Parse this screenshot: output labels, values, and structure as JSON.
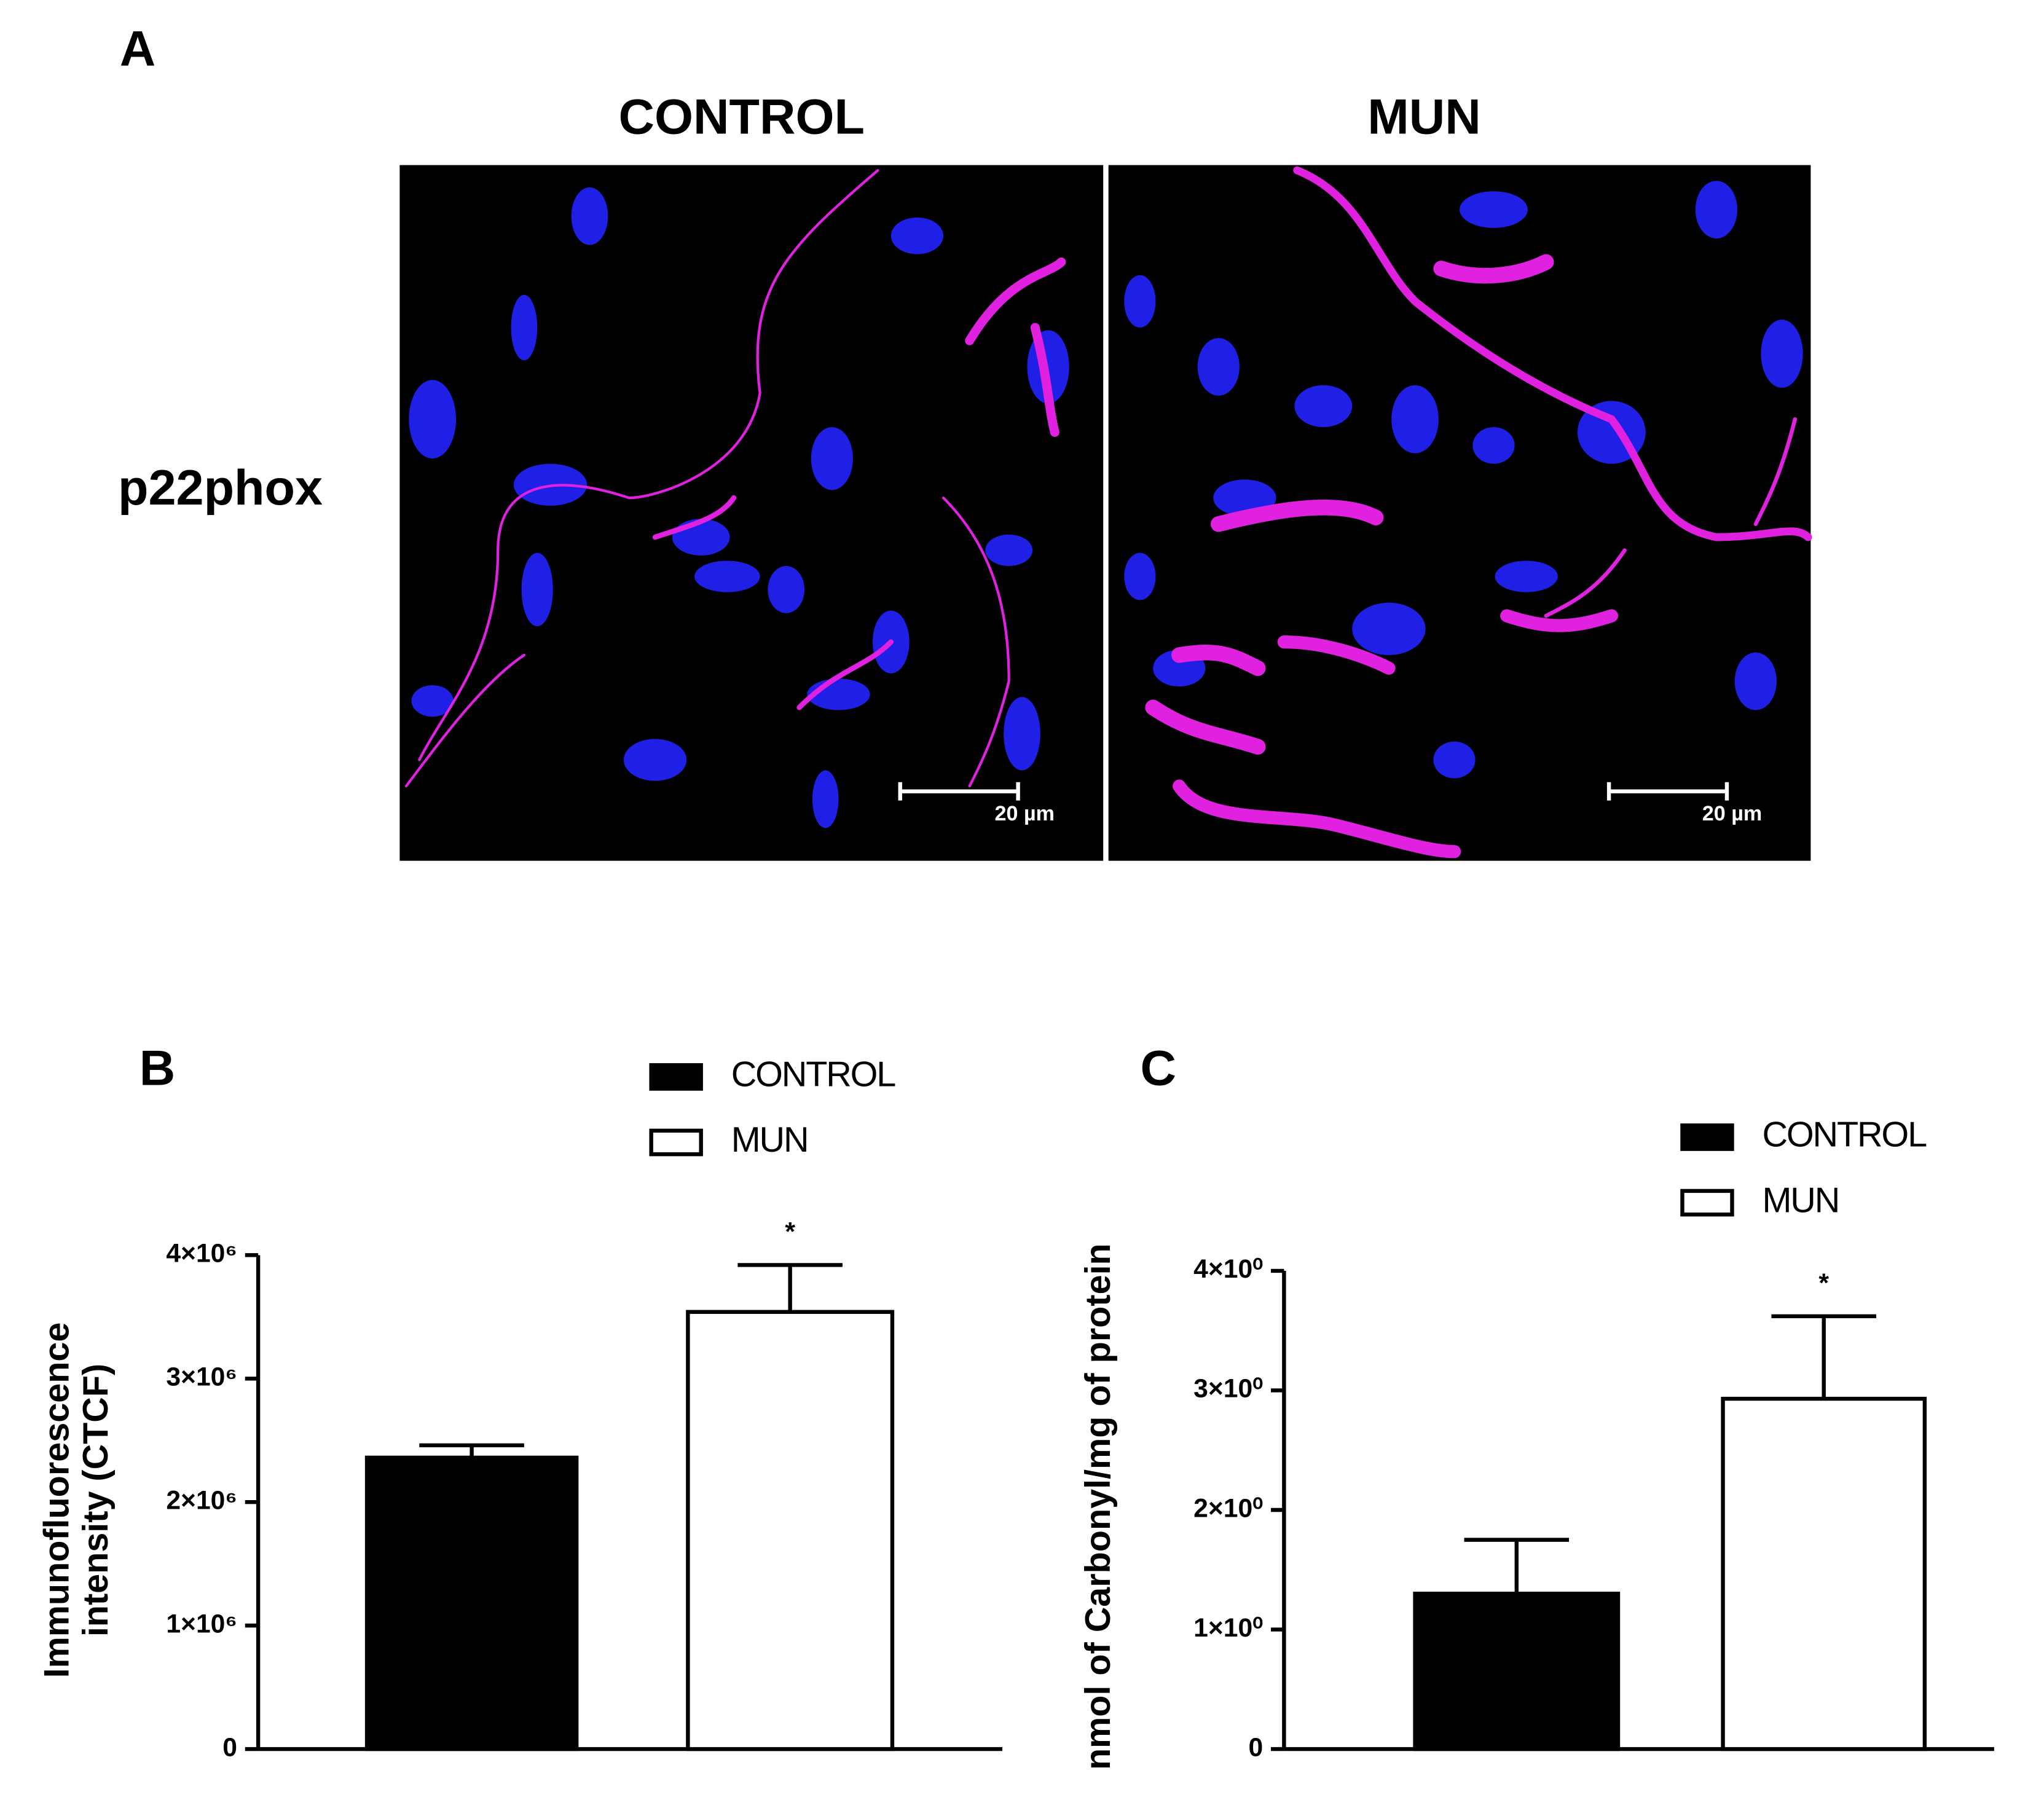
{
  "panel_a": {
    "label": "A",
    "columns": [
      "CONTROL",
      "MUN"
    ],
    "row_label": "p22phox",
    "scale_bars": [
      "20 µm",
      "20 µm"
    ]
  },
  "chart_data": [
    {
      "type": "bar",
      "panel": "B",
      "ylabel": [
        "Immunofluorescence",
        "intensity (CTCF)"
      ],
      "series": [
        {
          "name": "CONTROL",
          "color": "#000000",
          "values": [
            2360000
          ],
          "errors": [
            100000
          ]
        },
        {
          "name": "MUN",
          "color": "#ffffff",
          "values": [
            3540000
          ],
          "errors": [
            380000
          ]
        }
      ],
      "annotations": [
        {
          "text": "*"
        }
      ],
      "ylim": [
        0,
        4000000
      ],
      "yticks": [
        0,
        {
          "value": 1000000,
          "label": "1×10⁶"
        },
        {
          "value": 2000000,
          "label": "2×10⁶"
        },
        {
          "value": 3000000,
          "label": "3×10⁶"
        },
        {
          "value": 4000000,
          "label": "4×10⁶"
        }
      ]
    },
    {
      "type": "bar",
      "panel": "C",
      "ylabel": [
        "nmol of Carbonyl/mg of protein"
      ],
      "series": [
        {
          "name": "CONTROL",
          "color": "#000000",
          "values": [
            1.3
          ],
          "errors": [
            0.45
          ]
        },
        {
          "name": "MUN",
          "color": "#ffffff",
          "values": [
            2.93
          ],
          "errors": [
            0.69
          ]
        }
      ],
      "annotations": [
        {
          "text": "*"
        }
      ],
      "ylim": [
        0,
        4
      ],
      "yticks": [
        0,
        {
          "value": 1,
          "label": "1×10⁰"
        },
        {
          "value": 2,
          "label": "2×10⁰"
        },
        {
          "value": 3,
          "label": "3×10⁰"
        },
        {
          "value": 4,
          "label": "4×10⁰"
        }
      ]
    }
  ]
}
